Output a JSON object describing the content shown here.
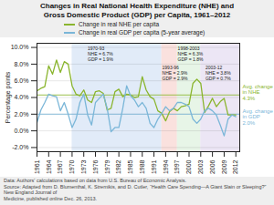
{
  "chart_data": {
    "type": "line",
    "title": "Changes in Real National Health Expenditure (NHE) and\nGross Domestic Product (GDP) per Capita, 1961–2012",
    "ylabel": "Percentage points",
    "x": [
      1961,
      1962,
      1963,
      1964,
      1965,
      1966,
      1967,
      1968,
      1969,
      1970,
      1971,
      1972,
      1973,
      1974,
      1975,
      1976,
      1977,
      1978,
      1979,
      1980,
      1981,
      1982,
      1983,
      1984,
      1985,
      1986,
      1987,
      1988,
      1989,
      1990,
      1991,
      1992,
      1993,
      1994,
      1995,
      1996,
      1997,
      1998,
      1999,
      2000,
      2001,
      2002,
      2003,
      2004,
      2005,
      2006,
      2007,
      2008,
      2009,
      2010,
      2011,
      2012
    ],
    "series": [
      {
        "name": "Change in real NHE per capita",
        "color": "#8ab52e",
        "values": [
          4.8,
          5.1,
          5.3,
          7.8,
          6.8,
          8.5,
          7.0,
          8.3,
          8.0,
          5.4,
          4.4,
          4.2,
          4.9,
          3.7,
          3.4,
          4.7,
          4.8,
          4.5,
          2.5,
          2.7,
          4.7,
          5.0,
          4.1,
          4.4,
          4.3,
          4.0,
          4.1,
          6.5,
          4.9,
          4.1,
          3.8,
          2.4,
          2.1,
          1.2,
          2.3,
          2.7,
          2.4,
          2.9,
          3.0,
          3.2,
          5.7,
          6.2,
          5.7,
          2.2,
          3.0,
          3.9,
          2.9,
          3.5,
          3.9,
          1.9,
          1.9,
          1.9
        ]
      },
      {
        "name": "Change in real GDP per capita (5-year average)",
        "color": "#7ab6d8",
        "values": [
          1.0,
          2.5,
          3.4,
          4.4,
          4.2,
          4.1,
          2.4,
          3.4,
          2.0,
          0.4,
          1.4,
          3.4,
          4.4,
          1.9,
          0.7,
          3.4,
          3.9,
          4.4,
          2.7,
          -0.1,
          0.4,
          0.4,
          2.7,
          5.4,
          4.2,
          3.7,
          2.9,
          3.4,
          2.7,
          0.9,
          0.4,
          1.4,
          2.1,
          2.9,
          2.4,
          2.7,
          3.4,
          3.4,
          3.2,
          2.9,
          1.4,
          0.9,
          1.4,
          2.4,
          2.7,
          2.4,
          1.9,
          0.7,
          -0.6,
          1.4,
          1.9,
          1.7
        ]
      }
    ],
    "xlim": [
      1961,
      2013
    ],
    "xticks": [
      1961,
      1964,
      1967,
      1970,
      1973,
      1976,
      1979,
      1982,
      1985,
      1988,
      1991,
      1994,
      1997,
      2000,
      2003,
      2006,
      2009,
      2012
    ],
    "ylim": [
      -2.5,
      10.5
    ],
    "yticks": [
      {
        "value": -2.0,
        "label": "-2.0%"
      },
      {
        "value": 0.0,
        "label": "0.0%"
      },
      {
        "value": 2.0,
        "label": "2.0%"
      },
      {
        "value": 4.0,
        "label": "4.0%"
      },
      {
        "value": 6.0,
        "label": "6.0%"
      },
      {
        "value": 8.0,
        "label": "8.0%"
      },
      {
        "value": 10.0,
        "label": "10.0%"
      }
    ],
    "grid": true,
    "legend": "top",
    "regions": [
      {
        "xmin": 1970,
        "xmax": 1993,
        "color": "#c8daf2"
      },
      {
        "xmin": 1993,
        "xmax": 1997,
        "color": "#f5c8c2"
      },
      {
        "xmin": 1997,
        "xmax": 2003,
        "color": "#d4ecd4"
      },
      {
        "xmin": 2003,
        "xmax": 2013,
        "color": "#ddd2ec"
      }
    ],
    "reference_lines": [
      {
        "value": 4.3,
        "color": "#8ab52e",
        "label": "Avg. change\nin NHE\n4.3%"
      },
      {
        "value": 2.0,
        "color": "#7ab6d8",
        "label": "Avg. change\nin GDP\n2.0%"
      }
    ],
    "annotations": [
      {
        "text": "1970-93\nNHE = 6.7%\nGDP = 1.9%",
        "x": 1974.0
      },
      {
        "text": "1993-96\nNHE = 2.9%\nGDP = 2.9%",
        "x": 1993.1
      },
      {
        "text": "1998-2003\nNHE = 6.3%\nGDP = 1.8%",
        "x": 1997.1
      },
      {
        "text": "2003-12\nNHE = 3.8%\nGDP = 0.7%",
        "x": 2004.2
      }
    ],
    "footnotes": [
      "Data: Authors' calculations based on data from U.S. Bureau of Economic Analysis.",
      "Source: Adapted from D. Blumenthal, K. Stremikis, and D. Cutler, “Health Care Spending—A Giant Slain or Sleeping?” New England Journal of",
      "Medicine, published online Dec. 26, 2013."
    ],
    "background_color": "#efefef"
  }
}
